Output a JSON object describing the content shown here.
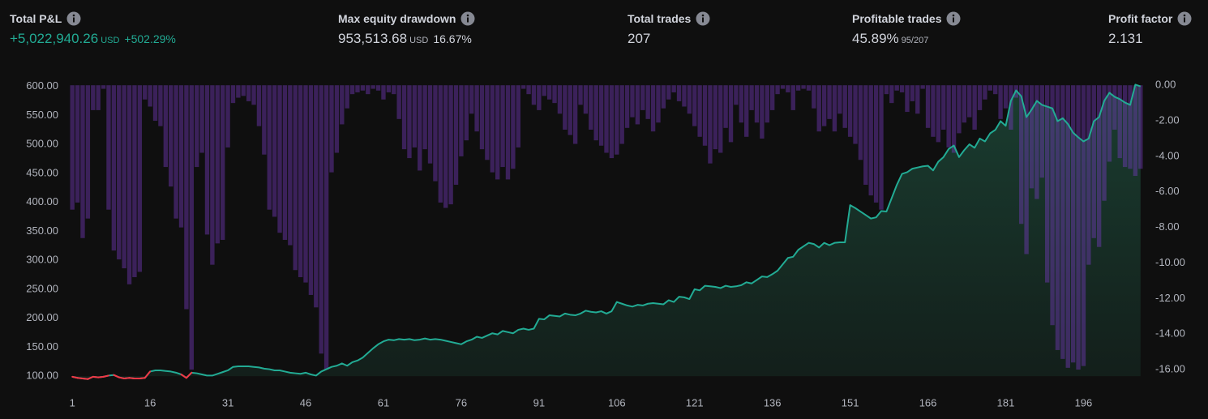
{
  "stats": [
    {
      "label": "Total P&L",
      "value": "+5,022,940.26",
      "unit": "USD",
      "change": "+502.29%"
    },
    {
      "label": "Max equity drawdown",
      "value": "953,513.68",
      "unit": "USD",
      "change": "16.67%"
    },
    {
      "label": "Total trades",
      "value": "207"
    },
    {
      "label": "Profitable trades",
      "value": "45.89%",
      "detail": "95/207"
    },
    {
      "label": "Profit factor",
      "value": "2.131"
    }
  ],
  "chart_data": {
    "type": "combo",
    "x": [
      1,
      2,
      3,
      4,
      5,
      6,
      7,
      8,
      9,
      10,
      11,
      12,
      13,
      14,
      15,
      16,
      17,
      18,
      19,
      20,
      21,
      22,
      23,
      24,
      25,
      26,
      27,
      28,
      29,
      30,
      31,
      32,
      33,
      34,
      35,
      36,
      37,
      38,
      39,
      40,
      41,
      42,
      43,
      44,
      45,
      46,
      47,
      48,
      49,
      50,
      51,
      52,
      53,
      54,
      55,
      56,
      57,
      58,
      59,
      60,
      61,
      62,
      63,
      64,
      65,
      66,
      67,
      68,
      69,
      70,
      71,
      72,
      73,
      74,
      75,
      76,
      77,
      78,
      79,
      80,
      81,
      82,
      83,
      84,
      85,
      86,
      87,
      88,
      89,
      90,
      91,
      92,
      93,
      94,
      95,
      96,
      97,
      98,
      99,
      100,
      101,
      102,
      103,
      104,
      105,
      106,
      107,
      108,
      109,
      110,
      111,
      112,
      113,
      114,
      115,
      116,
      117,
      118,
      119,
      120,
      121,
      122,
      123,
      124,
      125,
      126,
      127,
      128,
      129,
      130,
      131,
      132,
      133,
      134,
      135,
      136,
      137,
      138,
      139,
      140,
      141,
      142,
      143,
      144,
      145,
      146,
      147,
      148,
      149,
      150,
      151,
      152,
      153,
      154,
      155,
      156,
      157,
      158,
      159,
      160,
      161,
      162,
      163,
      164,
      165,
      166,
      167,
      168,
      169,
      170,
      171,
      172,
      173,
      174,
      175,
      176,
      177,
      178,
      179,
      180,
      181,
      182,
      183,
      184,
      185,
      186,
      187,
      188,
      189,
      190,
      191,
      192,
      193,
      194,
      195,
      196,
      197,
      198,
      199,
      200,
      201,
      202,
      203,
      204,
      205,
      206,
      207
    ],
    "series": [
      {
        "type": "area",
        "color": "#22ab94",
        "negative_color": "#f23645",
        "area_color": "#1e4d3c",
        "axis": "y",
        "values": [
          99,
          97,
          96,
          95,
          99,
          98,
          99,
          101,
          102,
          98,
          96,
          97,
          96,
          96,
          97,
          108,
          110,
          110,
          109,
          108,
          106,
          103,
          97,
          106,
          105,
          103,
          101,
          101,
          104,
          107,
          110,
          116,
          117,
          117,
          117,
          116,
          115,
          113,
          112,
          110,
          110,
          108,
          106,
          105,
          104,
          106,
          103,
          101,
          108,
          112,
          116,
          118,
          122,
          118,
          124,
          127,
          132,
          140,
          148,
          155,
          160,
          163,
          162,
          164,
          163,
          164,
          162,
          163,
          165,
          163,
          164,
          163,
          161,
          159,
          157,
          155,
          160,
          163,
          168,
          166,
          170,
          174,
          172,
          178,
          176,
          174,
          180,
          182,
          180,
          182,
          199,
          198,
          205,
          204,
          203,
          208,
          206,
          205,
          208,
          213,
          211,
          210,
          212,
          208,
          212,
          228,
          225,
          222,
          220,
          223,
          222,
          225,
          226,
          225,
          224,
          231,
          228,
          237,
          236,
          233,
          250,
          248,
          256,
          255,
          254,
          252,
          256,
          254,
          255,
          257,
          262,
          260,
          266,
          272,
          271,
          276,
          282,
          293,
          304,
          306,
          318,
          324,
          330,
          328,
          322,
          330,
          326,
          330,
          331,
          331,
          395,
          390,
          384,
          378,
          372,
          374,
          385,
          384,
          407,
          430,
          449,
          452,
          458,
          460,
          462,
          463,
          455,
          470,
          478,
          492,
          498,
          478,
          490,
          500,
          494,
          510,
          505,
          519,
          525,
          540,
          532,
          575,
          593,
          583,
          547,
          560,
          575,
          568,
          565,
          562,
          540,
          545,
          535,
          520,
          512,
          505,
          510,
          540,
          547,
          575,
          589,
          582,
          578,
          572,
          568,
          603,
          600
        ]
      },
      {
        "type": "bar",
        "color": "#7a3cc4",
        "axis": "y2",
        "values": [
          -7.0,
          -6.6,
          -8.6,
          -7.5,
          -1.4,
          -1.4,
          -0.2,
          -7.0,
          -9.3,
          -9.8,
          -10.3,
          -11.2,
          -10.8,
          -10.5,
          -0.8,
          -1.2,
          -2.0,
          -2.3,
          -4.6,
          -5.7,
          -7.5,
          -8.0,
          -12.6,
          -16.0,
          -4.6,
          -3.8,
          -8.4,
          -10.1,
          -8.9,
          -8.7,
          -3.5,
          -1.0,
          -0.7,
          -0.6,
          -0.9,
          -1.1,
          -2.3,
          -3.9,
          -7.0,
          -7.4,
          -8.3,
          -8.7,
          -9.0,
          -10.4,
          -10.8,
          -11.1,
          -11.8,
          -12.5,
          -15.1,
          -16.0,
          -4.9,
          -3.8,
          -2.2,
          -1.3,
          -0.5,
          -0.4,
          -0.3,
          -0.5,
          -0.2,
          -0.3,
          -0.8,
          -0.4,
          -0.5,
          -1.9,
          -3.6,
          -4.1,
          -3.5,
          -4.8,
          -3.6,
          -4.4,
          -5.4,
          -6.6,
          -6.9,
          -6.7,
          -5.6,
          -4.0,
          -3.1,
          -1.6,
          -2.6,
          -3.6,
          -4.2,
          -4.9,
          -5.3,
          -4.6,
          -5.3,
          -4.7,
          -3.5,
          -0.2,
          -0.5,
          -1.1,
          -1.4,
          -0.6,
          -0.8,
          -1.0,
          -1.6,
          -2.5,
          -2.8,
          -3.3,
          -1.1,
          -1.6,
          -2.5,
          -3.1,
          -3.4,
          -3.8,
          -4.1,
          -3.9,
          -3.3,
          -2.4,
          -1.8,
          -2.2,
          -1.4,
          -1.9,
          -2.6,
          -2.1,
          -1.3,
          -0.8,
          -0.4,
          -0.9,
          -1.2,
          -1.6,
          -2.3,
          -2.9,
          -3.4,
          -4.4,
          -3.6,
          -3.8,
          -2.4,
          -3.2,
          -1.1,
          -2.1,
          -2.9,
          -1.4,
          -2.1,
          -3.0,
          -2.1,
          -1.4,
          -0.5,
          -0.2,
          -0.4,
          -1.4,
          -0.3,
          -0.2,
          -0.3,
          -1.3,
          -2.6,
          -2.3,
          -1.9,
          -2.6,
          -1.6,
          -2.4,
          -2.9,
          -3.3,
          -4.2,
          -5.6,
          -6.2,
          -6.6,
          -7.0,
          -0.5,
          -1.0,
          -0.3,
          -0.4,
          -1.5,
          -0.9,
          -1.6,
          -0.2,
          -2.4,
          -2.9,
          -3.2,
          -2.5,
          -3.5,
          -3.8,
          -2.7,
          -2.1,
          -1.8,
          -2.5,
          -1.4,
          -0.8,
          -0.3,
          -0.5,
          -1.9,
          -1.3,
          -2.5,
          -0.7,
          -7.8,
          -9.5,
          -5.8,
          -6.4,
          -5.2,
          -11.1,
          -13.5,
          -14.9,
          -15.4,
          -15.9,
          -15.6,
          -16.0,
          -15.8,
          -10.1,
          -8.6,
          -9.1,
          -6.5,
          -4.3,
          -2.5,
          -4.1,
          -4.6,
          -4.7,
          -5.1,
          -4.7
        ]
      }
    ],
    "xlim": [
      0.5,
      207.5
    ],
    "xticks": [
      1,
      16,
      31,
      46,
      61,
      76,
      91,
      106,
      121,
      136,
      151,
      166,
      181,
      196
    ],
    "ylim": [
      96,
      605
    ],
    "yticks": [
      {
        "value": 100,
        "label": "100.00"
      },
      {
        "value": 150,
        "label": "150.00"
      },
      {
        "value": 200,
        "label": "200.00"
      },
      {
        "value": 250,
        "label": "250.00"
      },
      {
        "value": 300,
        "label": "300.00"
      },
      {
        "value": 350,
        "label": "350.00"
      },
      {
        "value": 400,
        "label": "400.00"
      },
      {
        "value": 450,
        "label": "450.00"
      },
      {
        "value": 500,
        "label": "500.00"
      },
      {
        "value": 550,
        "label": "550.00"
      },
      {
        "value": 600,
        "label": "600.00"
      }
    ],
    "y2lim": [
      -16.5,
      0.1
    ],
    "y2ticks": [
      {
        "value": 0,
        "label": "0.00"
      },
      {
        "value": -2,
        "label": "-2.00"
      },
      {
        "value": -4,
        "label": "-4.00"
      },
      {
        "value": -6,
        "label": "-6.00"
      },
      {
        "value": -8,
        "label": "-8.00"
      },
      {
        "value": -10,
        "label": "-10.00"
      },
      {
        "value": -12,
        "label": "-12.00"
      },
      {
        "value": -14,
        "label": "-14.00"
      },
      {
        "value": -16,
        "label": "-16.00"
      }
    ],
    "grid": false
  }
}
